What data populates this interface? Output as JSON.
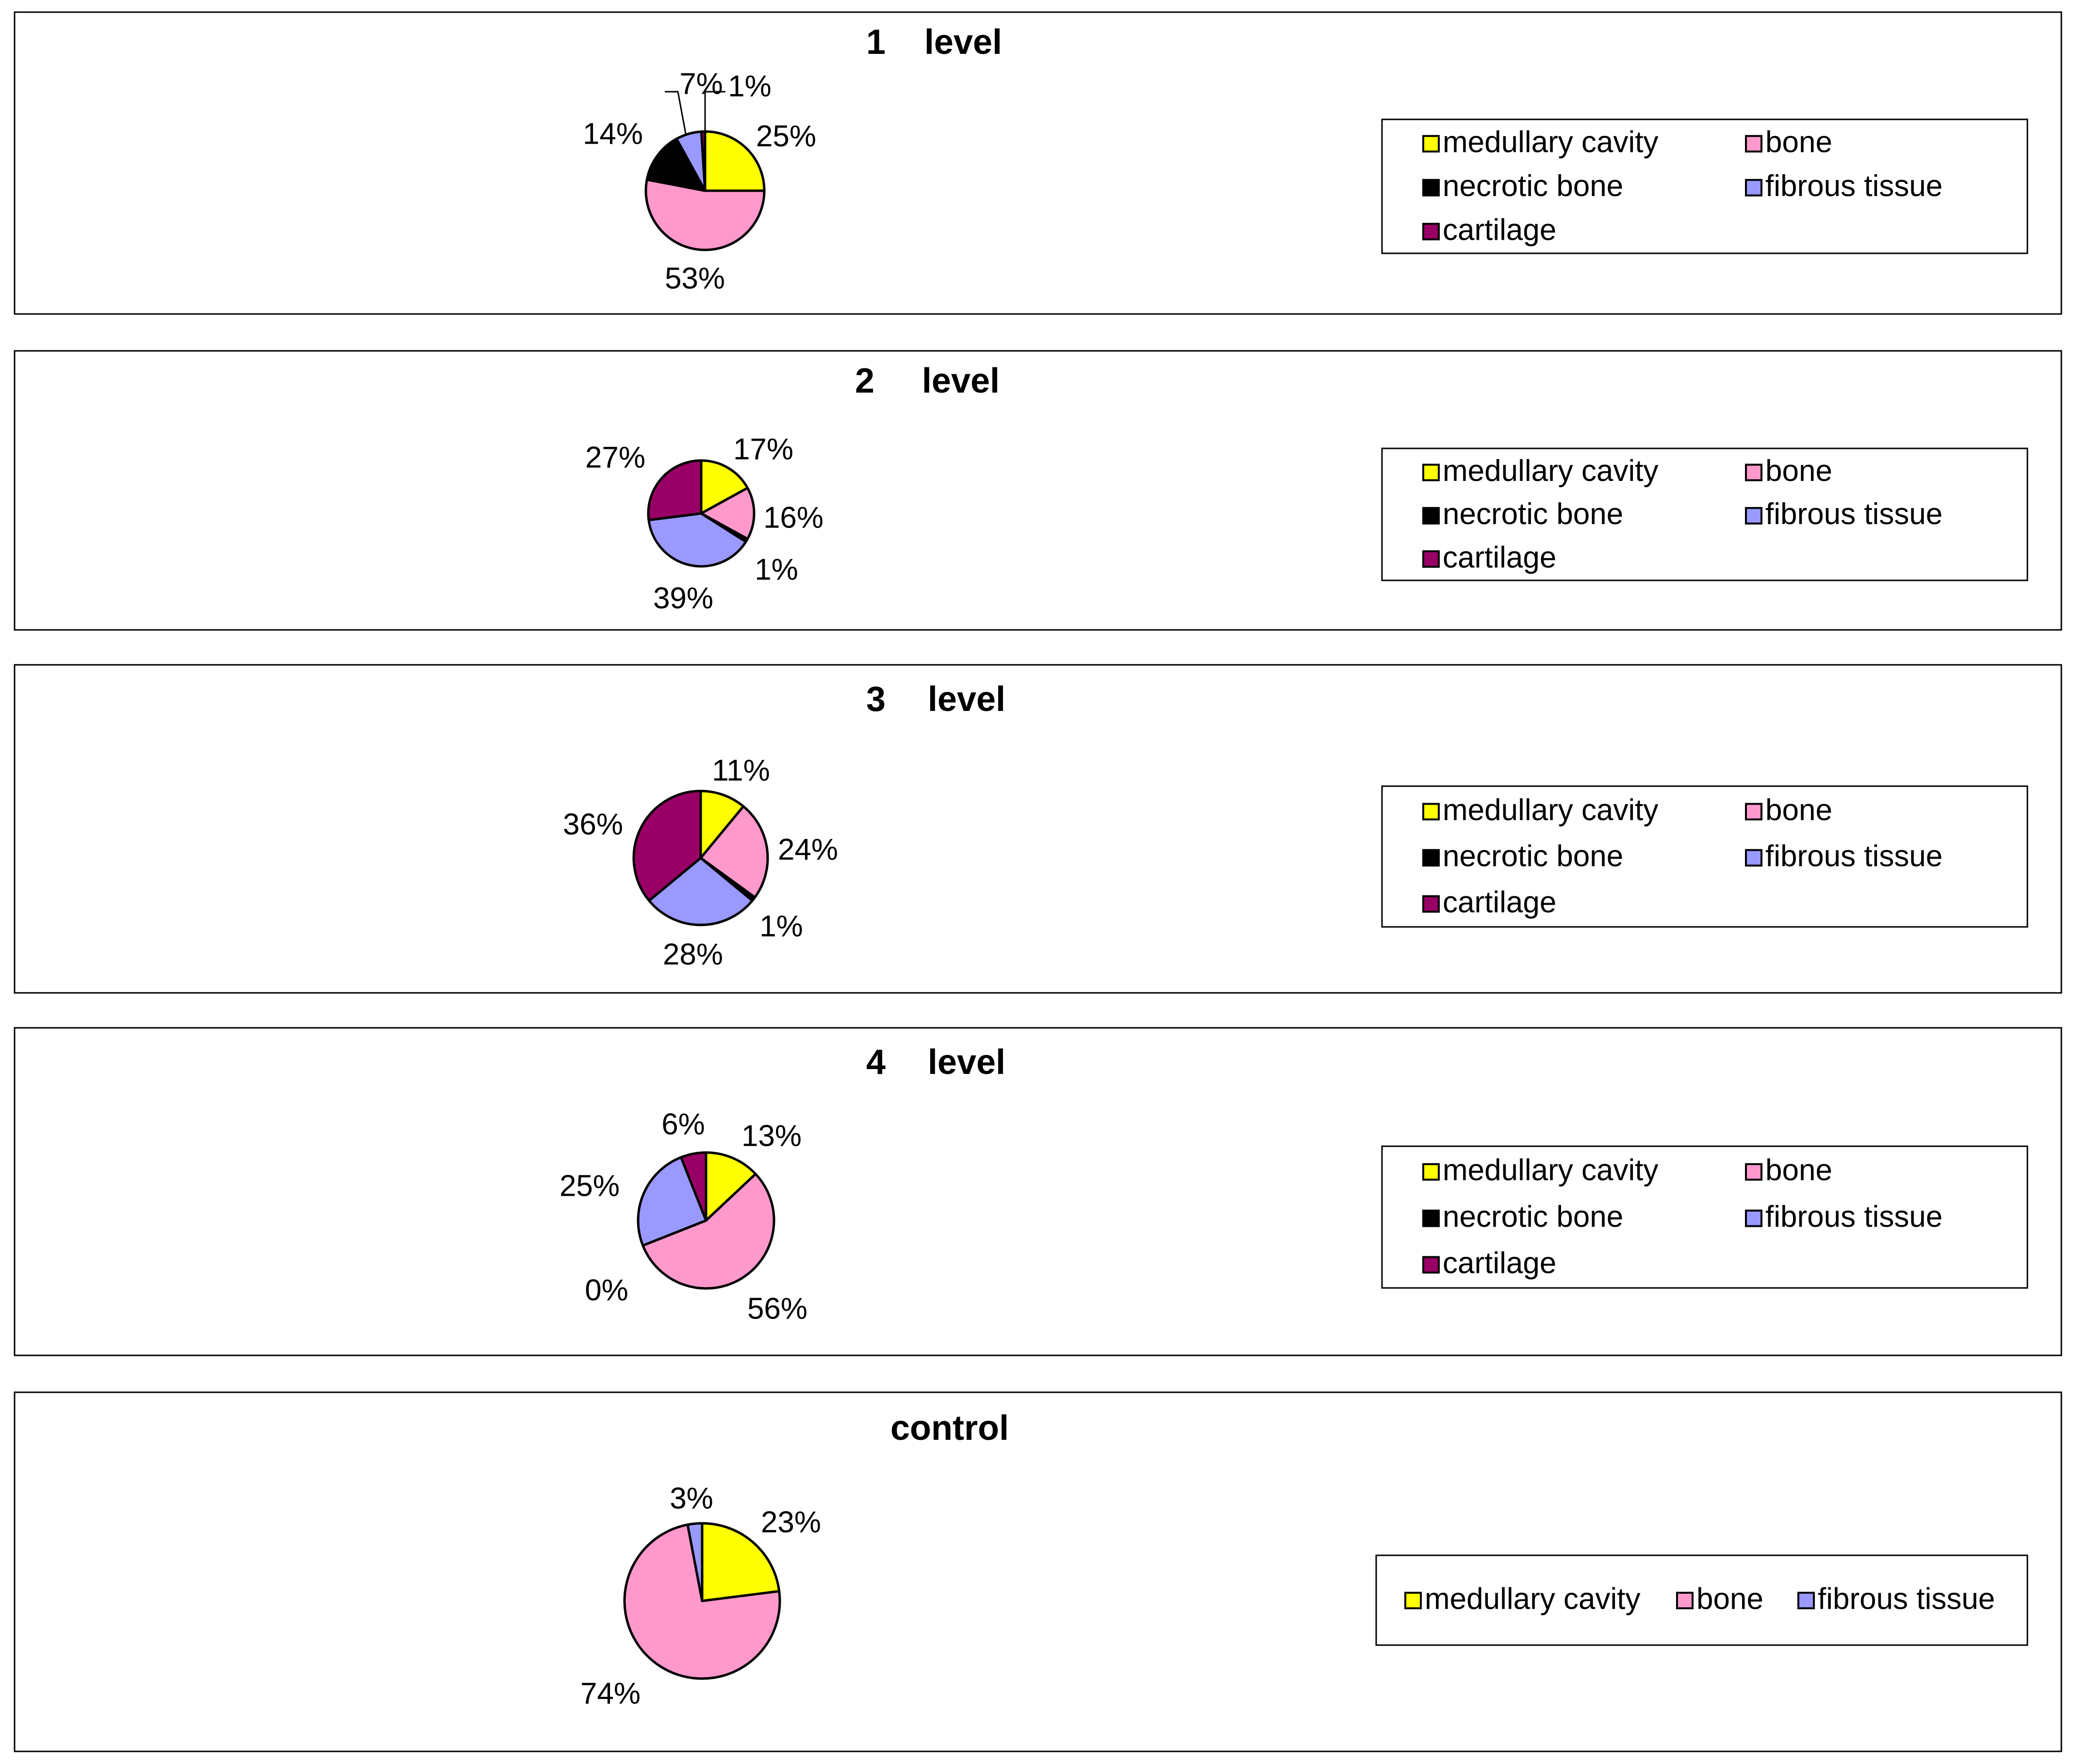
{
  "colors": {
    "medullary cavity": "#ffff00",
    "bone": "#ff99cc",
    "necrotic bone": "#000000",
    "fibrous tissue": "#9999ff",
    "cartilage": "#990066"
  },
  "chart_data": [
    {
      "type": "pie",
      "title": "1 level",
      "title_parts": [
        "1",
        "level"
      ],
      "legend_position": "right",
      "legend": [
        "medullary cavity",
        "bone",
        "necrotic bone",
        "fibrous tissue",
        "cartilage"
      ],
      "slices": [
        {
          "name": "medullary cavity",
          "value": 25,
          "label": "25%"
        },
        {
          "name": "bone",
          "value": 53,
          "label": "53%"
        },
        {
          "name": "necrotic bone",
          "value": 14,
          "label": "14%"
        },
        {
          "name": "fibrous tissue",
          "value": 7,
          "label": "7%"
        },
        {
          "name": "cartilage",
          "value": 1,
          "label": "1%"
        }
      ]
    },
    {
      "type": "pie",
      "title": "2 level",
      "title_parts": [
        "2",
        "level"
      ],
      "legend_position": "right",
      "legend": [
        "medullary cavity",
        "bone",
        "necrotic bone",
        "fibrous tissue",
        "cartilage"
      ],
      "slices": [
        {
          "name": "medullary cavity",
          "value": 17,
          "label": "17%"
        },
        {
          "name": "bone",
          "value": 16,
          "label": "16%"
        },
        {
          "name": "necrotic bone",
          "value": 1,
          "label": "1%"
        },
        {
          "name": "fibrous tissue",
          "value": 39,
          "label": "39%"
        },
        {
          "name": "cartilage",
          "value": 27,
          "label": "27%"
        }
      ]
    },
    {
      "type": "pie",
      "title": "3 level",
      "title_parts": [
        "3",
        "level"
      ],
      "legend_position": "right",
      "legend": [
        "medullary cavity",
        "bone",
        "necrotic bone",
        "fibrous tissue",
        "cartilage"
      ],
      "slices": [
        {
          "name": "medullary cavity",
          "value": 11,
          "label": "11%"
        },
        {
          "name": "bone",
          "value": 24,
          "label": "24%"
        },
        {
          "name": "necrotic bone",
          "value": 1,
          "label": "1%"
        },
        {
          "name": "fibrous tissue",
          "value": 28,
          "label": "28%"
        },
        {
          "name": "cartilage",
          "value": 36,
          "label": "36%"
        }
      ]
    },
    {
      "type": "pie",
      "title": "4 level",
      "title_parts": [
        "4",
        "level"
      ],
      "legend_position": "right",
      "legend": [
        "medullary cavity",
        "bone",
        "necrotic bone",
        "fibrous tissue",
        "cartilage"
      ],
      "slices": [
        {
          "name": "medullary cavity",
          "value": 13,
          "label": "13%"
        },
        {
          "name": "bone",
          "value": 56,
          "label": "56%"
        },
        {
          "name": "necrotic bone",
          "value": 0,
          "label": "0%"
        },
        {
          "name": "fibrous tissue",
          "value": 25,
          "label": "25%"
        },
        {
          "name": "cartilage",
          "value": 6,
          "label": "6%"
        }
      ]
    },
    {
      "type": "pie",
      "title": "control",
      "title_parts": [
        "control"
      ],
      "legend_position": "right",
      "legend": [
        "medullary cavity",
        "bone",
        "fibrous tissue"
      ],
      "slices": [
        {
          "name": "medullary cavity",
          "value": 23,
          "label": "23%"
        },
        {
          "name": "bone",
          "value": 74,
          "label": "74%"
        },
        {
          "name": "fibrous tissue",
          "value": 3,
          "label": "3%"
        }
      ]
    }
  ]
}
